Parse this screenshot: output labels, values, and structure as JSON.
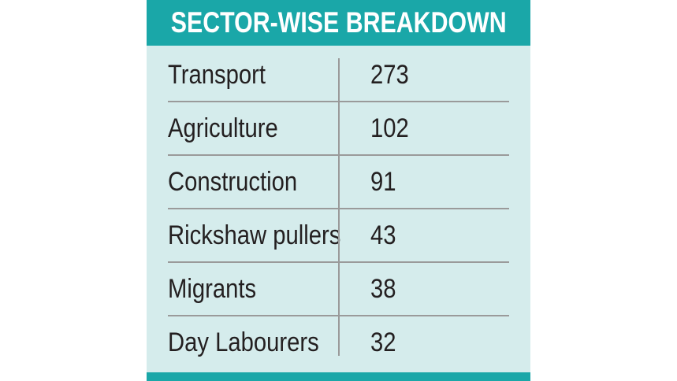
{
  "chart_data": {
    "type": "table",
    "title": "SECTOR-WISE BREAKDOWN",
    "categories": [
      "Transport",
      "Agriculture",
      "Construction",
      "Rickshaw pullers",
      "Migrants",
      "Day Labourers"
    ],
    "values": [
      273,
      102,
      91,
      43,
      38,
      32
    ],
    "rows": [
      {
        "label": "Transport",
        "value": "273"
      },
      {
        "label": "Agriculture",
        "value": "102"
      },
      {
        "label": "Construction",
        "value": "91"
      },
      {
        "label": "Rickshaw pullers",
        "value": "43"
      },
      {
        "label": "Migrants",
        "value": "38"
      },
      {
        "label": "Day Labourers",
        "value": "32"
      }
    ]
  },
  "colors": {
    "header": "#1aa7a8",
    "background": "#d5ecec",
    "text": "#231f20",
    "divider": "#9a9a9a"
  }
}
